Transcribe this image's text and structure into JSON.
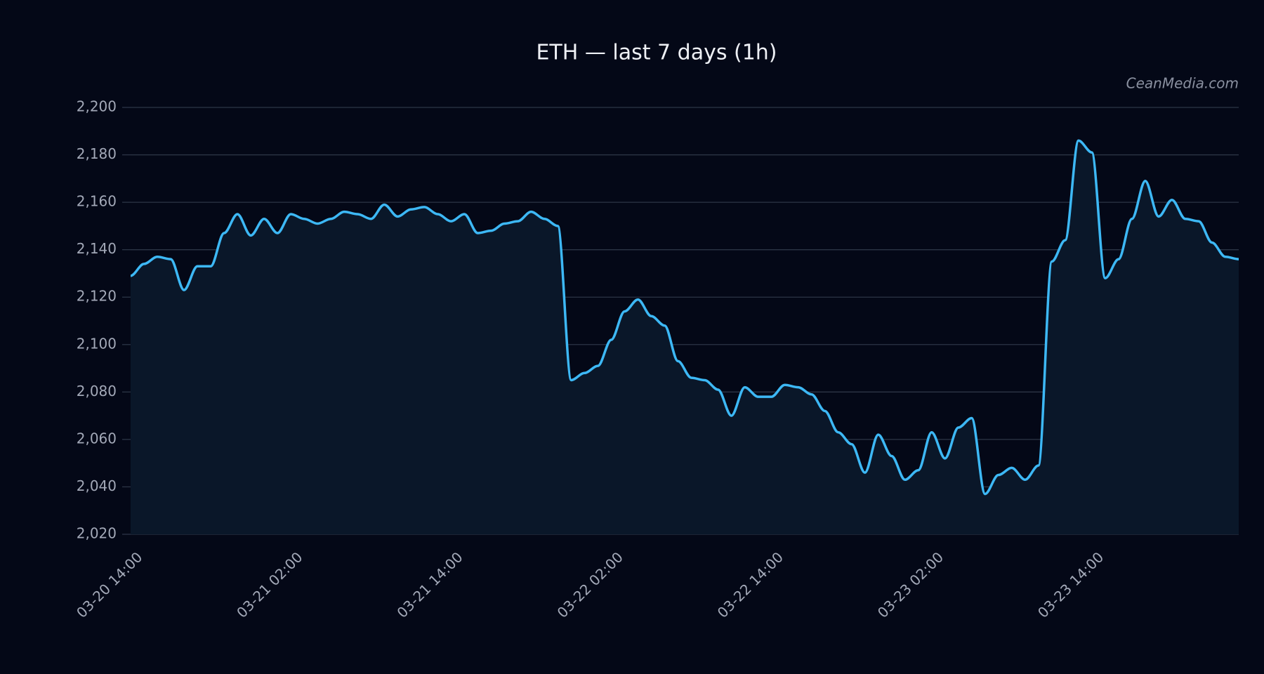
{
  "chart_data": {
    "type": "line",
    "title": "ETH — last 7 days (1h)",
    "watermark": "CeanMedia.com",
    "categories": [
      "03-20 14:00",
      null,
      null,
      null,
      null,
      null,
      null,
      null,
      null,
      null,
      null,
      null,
      "03-21 02:00",
      null,
      null,
      null,
      null,
      null,
      null,
      null,
      null,
      null,
      null,
      null,
      "03-21 14:00",
      null,
      null,
      null,
      null,
      null,
      null,
      null,
      null,
      null,
      null,
      null,
      "03-22 02:00",
      null,
      null,
      null,
      null,
      null,
      null,
      null,
      null,
      null,
      null,
      null,
      "03-22 14:00",
      null,
      null,
      null,
      null,
      null,
      null,
      null,
      null,
      null,
      null,
      null,
      "03-23 02:00",
      null,
      null,
      null,
      null,
      null,
      null,
      null,
      null,
      null,
      null,
      null,
      "03-23 14:00",
      null,
      null,
      null,
      null,
      null,
      null,
      null,
      null,
      null,
      null,
      null
    ],
    "values": [
      2129,
      2134,
      2137,
      2136,
      2123,
      2133,
      2133,
      2147,
      2155,
      2146,
      2153,
      2147,
      2155,
      2153,
      2151,
      2153,
      2156,
      2155,
      2153,
      2159,
      2154,
      2157,
      2158,
      2155,
      2152,
      2155,
      2147,
      2148,
      2151,
      2152,
      2156,
      2153,
      2150,
      2085,
      2088,
      2091,
      2102,
      2114,
      2119,
      2112,
      2108,
      2093,
      2086,
      2085,
      2081,
      2070,
      2082,
      2078,
      2078,
      2083,
      2082,
      2079,
      2072,
      2063,
      2058,
      2046,
      2062,
      2053,
      2043,
      2047,
      2063,
      2052,
      2065,
      2069,
      2037,
      2045,
      2048,
      2043,
      2049,
      2135,
      2144,
      2186,
      2181,
      2128,
      2136,
      2153,
      2169,
      2154,
      2161,
      2153,
      2152,
      2143,
      2137,
      2136
    ],
    "color": "#3db8f5",
    "fill": "#0a1729",
    "ylim": [
      2020,
      2200
    ],
    "yticks": [
      {
        "value": 2020,
        "label": "2,020"
      },
      {
        "value": 2040,
        "label": "2,040"
      },
      {
        "value": 2060,
        "label": "2,060"
      },
      {
        "value": 2080,
        "label": "2,080"
      },
      {
        "value": 2100,
        "label": "2,100"
      },
      {
        "value": 2120,
        "label": "2,120"
      },
      {
        "value": 2140,
        "label": "2,140"
      },
      {
        "value": 2160,
        "label": "2,160"
      },
      {
        "value": 2180,
        "label": "2,180"
      },
      {
        "value": 2200,
        "label": "2,200"
      }
    ],
    "grid": true
  }
}
